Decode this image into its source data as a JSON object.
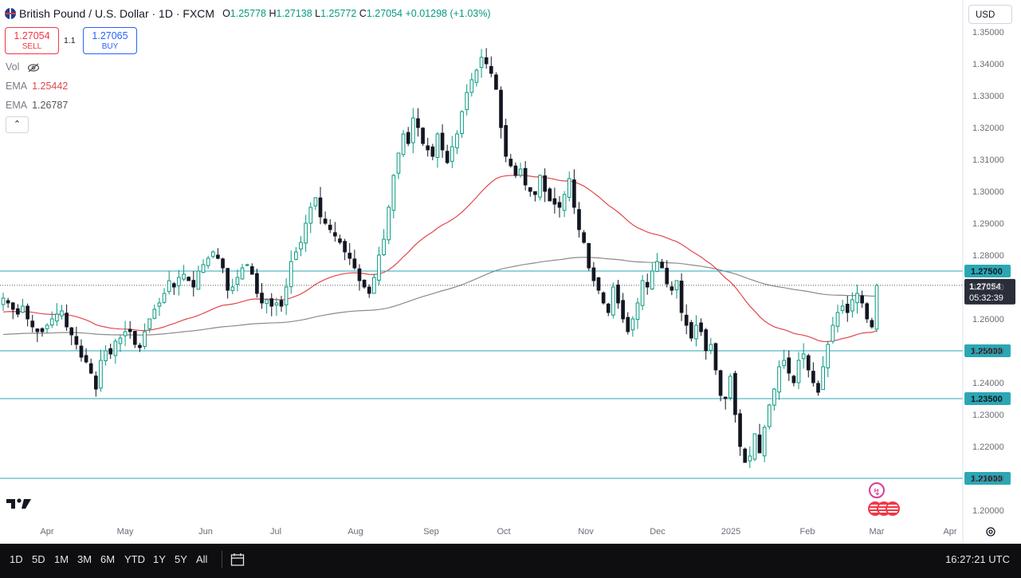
{
  "header": {
    "symbol": "British Pound / U.S. Dollar · 1D · FXCM",
    "open_label": "O",
    "open": "1.25778",
    "high_label": "H",
    "high": "1.27138",
    "low_label": "L",
    "low": "1.25772",
    "close_label": "C",
    "close": "1.27054",
    "change": "+0.01298 (+1.03%)"
  },
  "trade": {
    "sell_price": "1.27054",
    "sell_label": "SELL",
    "spread": "1.1",
    "buy_price": "1.27065",
    "buy_label": "BUY"
  },
  "indicators": {
    "vol_label": "Vol",
    "ema1_label": "EMA",
    "ema1_value": "1.25442",
    "ema2_label": "EMA",
    "ema2_value": "1.26787"
  },
  "currency_button": "USD",
  "bottom_bar": {
    "timeframes": [
      "1D",
      "5D",
      "1M",
      "3M",
      "6M",
      "YTD",
      "1Y",
      "5Y",
      "All"
    ],
    "clock": "16:27:21 UTC"
  },
  "colors": {
    "up": "#089981",
    "down": "#131722",
    "ema_fast": "#e0474c",
    "ema_slow": "#8a8a8a",
    "hline": "#2ba7b4",
    "price_label_bg": "#2ba7b4",
    "last_price_bg": "#2a2e39"
  },
  "icons": {
    "eye": "eye-crossed-icon",
    "collapse": "chevron-up-icon",
    "calendar": "calendar-range-icon",
    "settings": "gear-icon",
    "logo": "tradingview-logo",
    "event": "lightning-icon",
    "flags": "us-flag-icon"
  },
  "chart_data": {
    "type": "candlestick",
    "y_ticks": [
      "1.35000",
      "1.34000",
      "1.33000",
      "1.32000",
      "1.31000",
      "1.30000",
      "1.29000",
      "1.28000",
      "1.27000",
      "1.26000",
      "1.25000",
      "1.24000",
      "1.23000",
      "1.22000",
      "1.21000",
      "1.20000"
    ],
    "ylim": [
      1.1965,
      1.3532
    ],
    "x_labels": [
      "Apr",
      "May",
      "Jun",
      "Jul",
      "Aug",
      "Sep",
      "Oct",
      "Nov",
      "Dec",
      "2025",
      "Feb",
      "Mar",
      "Apr"
    ],
    "horizontal_levels": [
      "1.27500",
      "1.25000",
      "1.23500",
      "1.21000"
    ],
    "last_price": "1.27054",
    "countdown": "05:32:39",
    "close_series": [
      1.2665,
      1.265,
      1.263,
      1.2615,
      1.264,
      1.26,
      1.2575,
      1.256,
      1.256,
      1.258,
      1.26,
      1.2615,
      1.2625,
      1.2575,
      1.255,
      1.252,
      1.248,
      1.2465,
      1.243,
      1.238,
      1.247,
      1.25,
      1.249,
      1.253,
      1.254,
      1.256,
      1.256,
      1.252,
      1.251,
      1.256,
      1.26,
      1.263,
      1.265,
      1.268,
      1.272,
      1.27,
      1.273,
      1.274,
      1.272,
      1.27,
      1.275,
      1.277,
      1.279,
      1.281,
      1.279,
      1.276,
      1.269,
      1.27,
      1.273,
      1.276,
      1.277,
      1.274,
      1.268,
      1.265,
      1.266,
      1.264,
      1.265,
      1.264,
      1.27,
      1.278,
      1.281,
      1.284,
      1.29,
      1.295,
      1.298,
      1.292,
      1.29,
      1.288,
      1.286,
      1.284,
      1.281,
      1.279,
      1.276,
      1.272,
      1.27,
      1.268,
      1.273,
      1.28,
      1.285,
      1.295,
      1.305,
      1.312,
      1.318,
      1.315,
      1.323,
      1.32,
      1.315,
      1.313,
      1.311,
      1.318,
      1.313,
      1.309,
      1.314,
      1.318,
      1.325,
      1.331,
      1.335,
      1.338,
      1.342,
      1.34,
      1.337,
      1.332,
      1.32,
      1.311,
      1.308,
      1.305,
      1.307,
      1.302,
      1.3,
      1.299,
      1.305,
      1.3,
      1.297,
      1.296,
      1.295,
      1.299,
      1.304,
      1.295,
      1.288,
      1.284,
      1.276,
      1.272,
      1.269,
      1.265,
      1.262,
      1.27,
      1.265,
      1.26,
      1.256,
      1.26,
      1.265,
      1.272,
      1.27,
      1.275,
      1.278,
      1.276,
      1.271,
      1.269,
      1.272,
      1.262,
      1.258,
      1.254,
      1.258,
      1.256,
      1.25,
      1.252,
      1.244,
      1.236,
      1.235,
      1.242,
      1.23,
      1.22,
      1.215,
      1.217,
      1.224,
      1.218,
      1.226,
      1.233,
      1.238,
      1.245,
      1.247,
      1.243,
      1.24,
      1.247,
      1.249,
      1.244,
      1.24,
      1.237,
      1.245,
      1.252,
      1.258,
      1.262,
      1.264,
      1.262,
      1.266,
      1.268,
      1.265,
      1.26,
      1.2575,
      1.2705
    ]
  }
}
